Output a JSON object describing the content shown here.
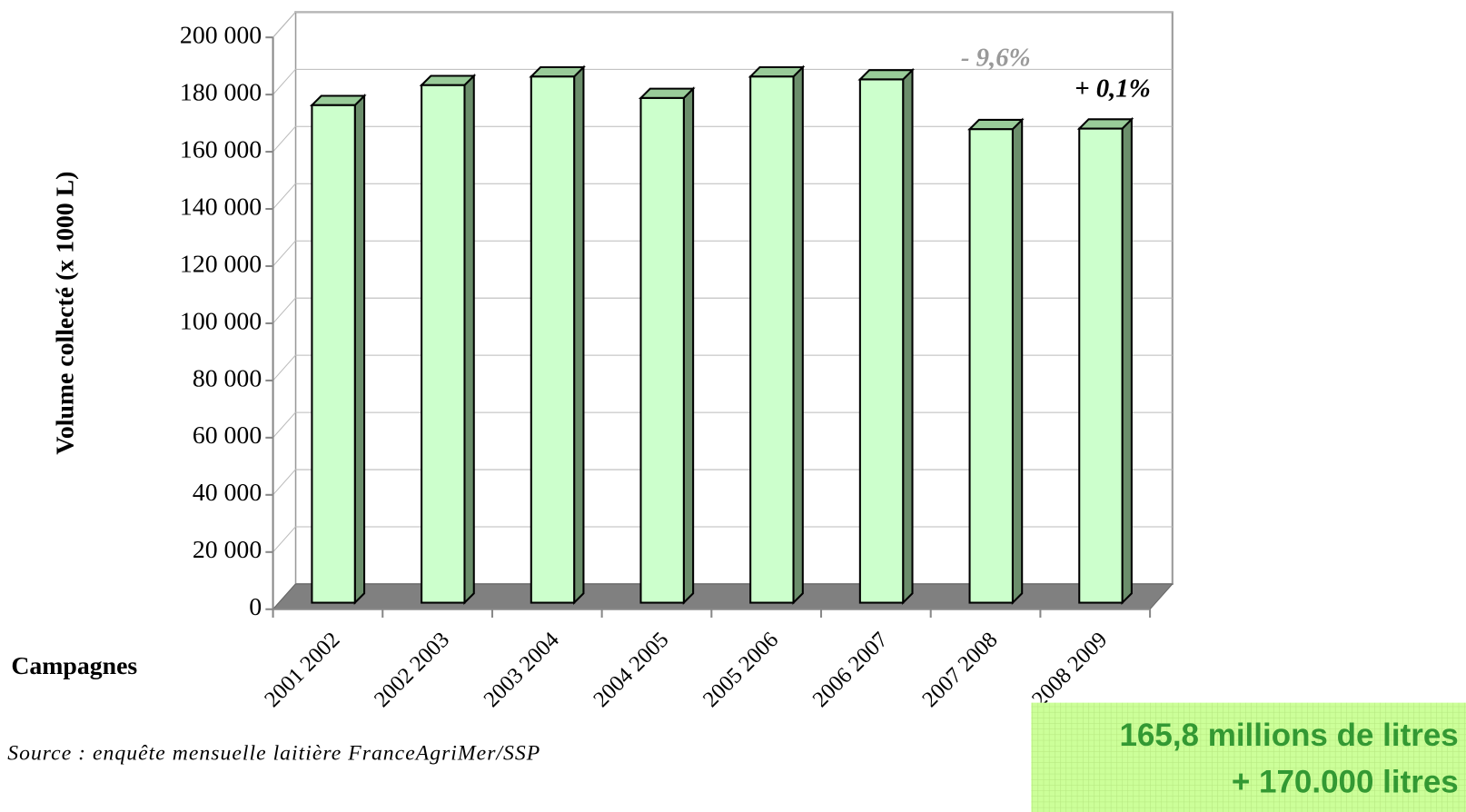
{
  "chart_data": {
    "type": "bar3d",
    "ylabel": "Volume collecté (x 1000 L)",
    "xlabel": "Campagnes",
    "categories": [
      "2001 2002",
      "2002 2003",
      "2003 2004",
      "2004 2005",
      "2005 2006",
      "2006 2007",
      "2007 2008",
      "2008 2009"
    ],
    "values": [
      174000,
      181000,
      184000,
      176500,
      184000,
      183000,
      165600,
      165800
    ],
    "color": "#ccffcc",
    "ylim": [
      0,
      200000
    ],
    "yticks": [
      0,
      {
        "value": 20000,
        "label": "20 000"
      },
      {
        "value": 40000,
        "label": "40 000"
      },
      {
        "value": 60000,
        "label": "60 000"
      },
      {
        "value": 80000,
        "label": "80 000"
      },
      {
        "value": 100000,
        "label": "100 000"
      },
      {
        "value": 120000,
        "label": "120 000"
      },
      {
        "value": 140000,
        "label": "140 000"
      },
      {
        "value": 160000,
        "label": "160 000"
      },
      {
        "value": 180000,
        "label": "180 000"
      },
      {
        "value": 200000,
        "label": "200 000"
      }
    ],
    "grid": true,
    "annotations": [
      "- 9,6%",
      "+ 0,1%"
    ],
    "source": "Source : enquête mensuelle laitière FranceAgriMer/SSP",
    "callout": [
      "165,8 millions de litres",
      "+ 170.000 litres"
    ]
  }
}
